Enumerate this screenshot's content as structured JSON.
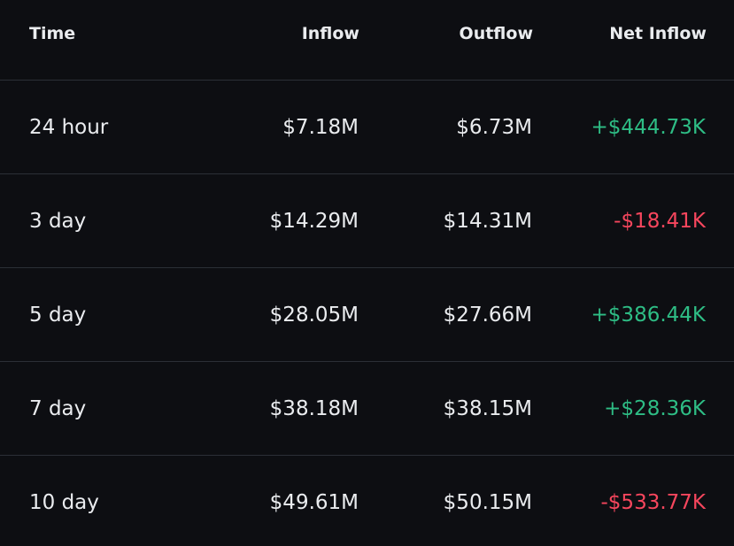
{
  "header": {
    "time": "Time",
    "inflow": "Inflow",
    "outflow": "Outflow",
    "net_inflow": "Net Inflow"
  },
  "colors": {
    "background": "#0d0e12",
    "text": "#eaecef",
    "divider": "#2b2f36",
    "positive": "#2ebd85",
    "negative": "#f6465d"
  },
  "rows": [
    {
      "time": "24 hour",
      "inflow": "$7.18M",
      "outflow": "$6.73M",
      "net_inflow": "+$444.73K",
      "trend": "positive"
    },
    {
      "time": "3 day",
      "inflow": "$14.29M",
      "outflow": "$14.31M",
      "net_inflow": "-$18.41K",
      "trend": "negative"
    },
    {
      "time": "5 day",
      "inflow": "$28.05M",
      "outflow": "$27.66M",
      "net_inflow": "+$386.44K",
      "trend": "positive"
    },
    {
      "time": "7 day",
      "inflow": "$38.18M",
      "outflow": "$38.15M",
      "net_inflow": "+$28.36K",
      "trend": "positive"
    },
    {
      "time": "10 day",
      "inflow": "$49.61M",
      "outflow": "$50.15M",
      "net_inflow": "-$533.77K",
      "trend": "negative"
    }
  ]
}
